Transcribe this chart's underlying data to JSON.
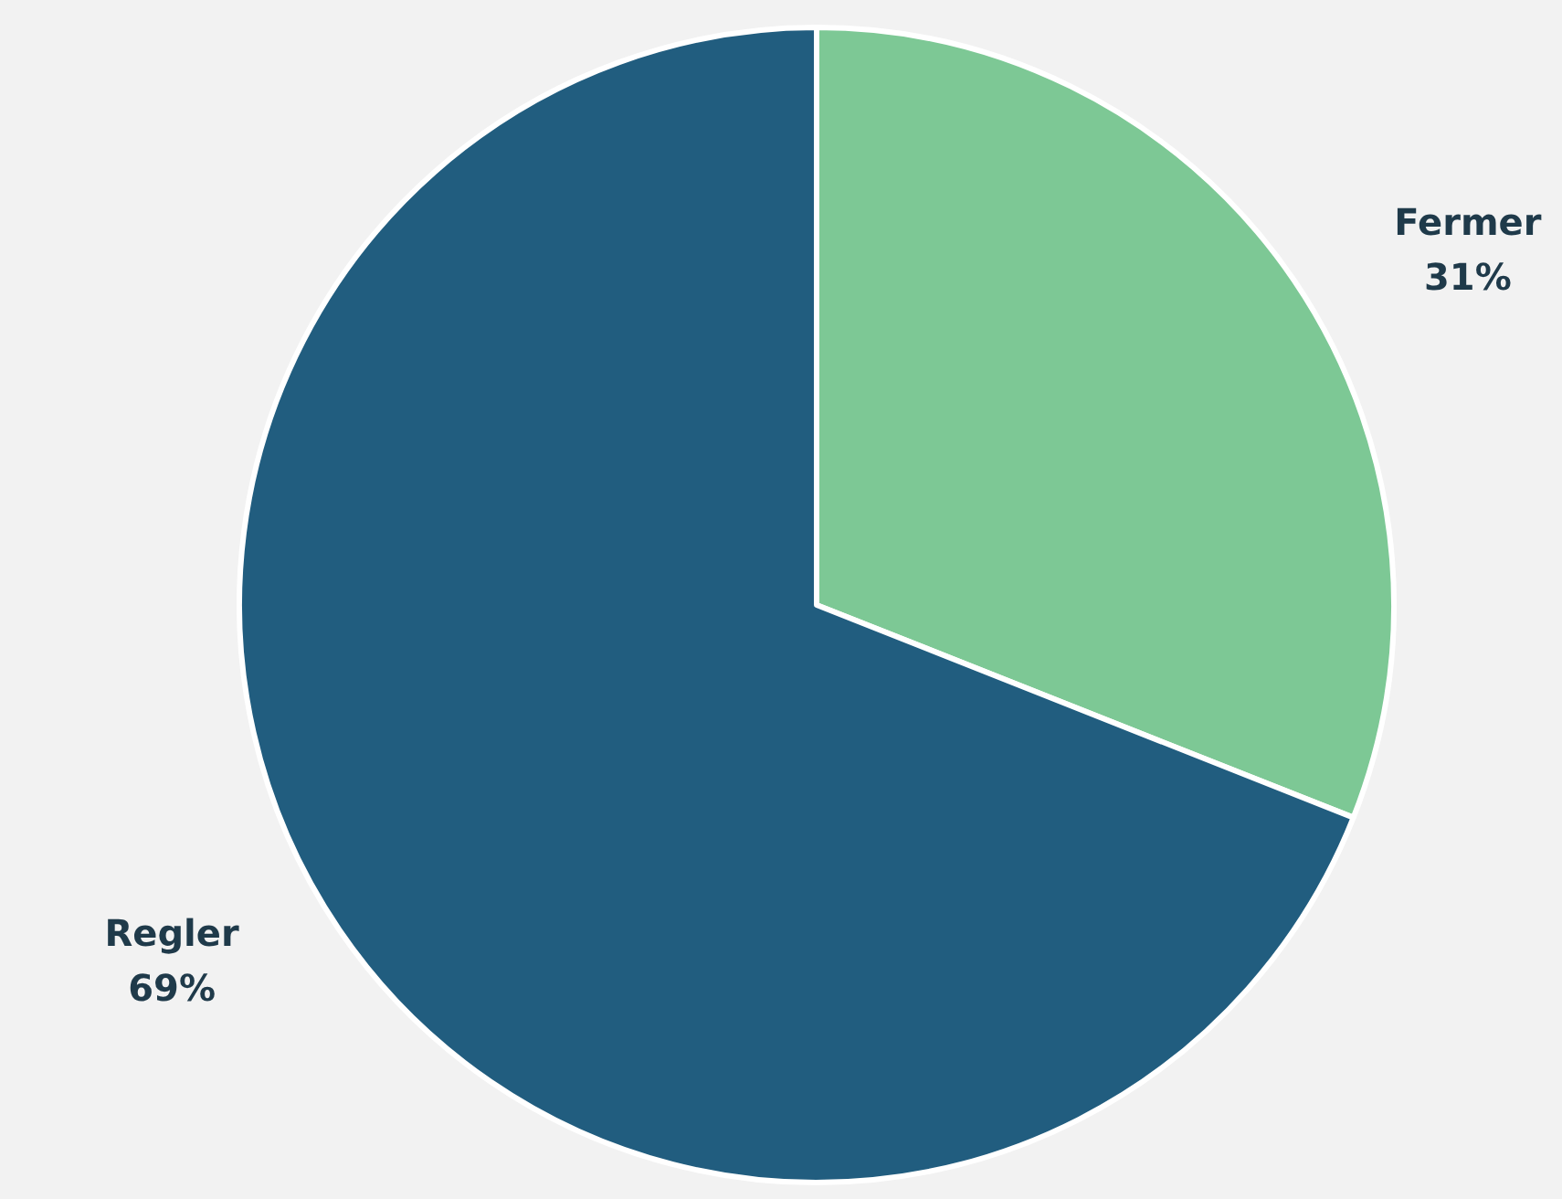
{
  "chart_data": {
    "type": "pie",
    "categories": [
      "Fermer",
      "Regler"
    ],
    "values": [
      31,
      69
    ],
    "colors": [
      "#7dc895",
      "#215d7f"
    ],
    "value_labels": [
      "31%",
      "69%"
    ],
    "legend": false
  }
}
